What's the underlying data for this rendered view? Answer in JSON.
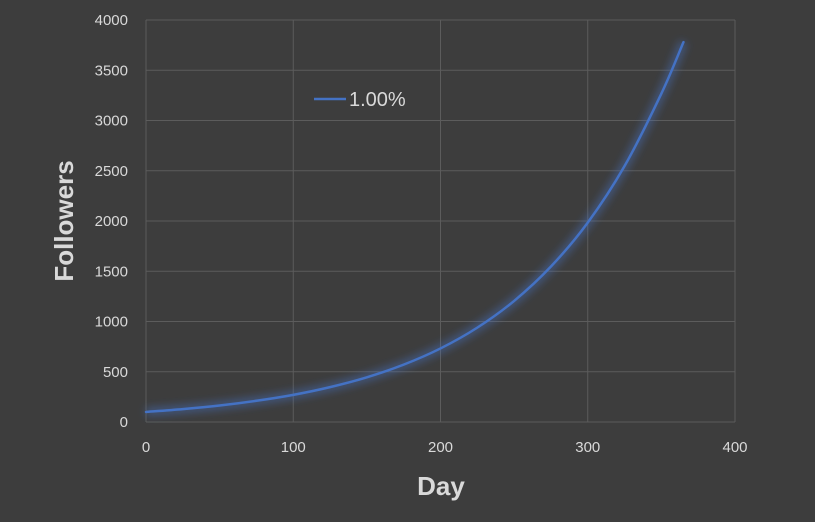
{
  "chart_data": {
    "type": "line",
    "title": "",
    "xlabel": "Day",
    "ylabel": "Followers",
    "xlim": [
      0,
      400
    ],
    "ylim": [
      0,
      4000
    ],
    "x_ticks": [
      0,
      100,
      200,
      300,
      400
    ],
    "y_ticks": [
      0,
      500,
      1000,
      1500,
      2000,
      2500,
      3000,
      3500,
      4000
    ],
    "grid": true,
    "legend_position": "top-left",
    "series": [
      {
        "name": "1.00%",
        "color": "#4472c4",
        "x": [
          0,
          25,
          50,
          75,
          100,
          125,
          150,
          175,
          200,
          225,
          250,
          275,
          300,
          325,
          350,
          365
        ],
        "y": [
          100,
          128,
          164,
          211,
          270,
          347,
          445,
          571,
          732,
          939,
          1205,
          1547,
          1984,
          2547,
          3268,
          3780
        ]
      }
    ]
  }
}
